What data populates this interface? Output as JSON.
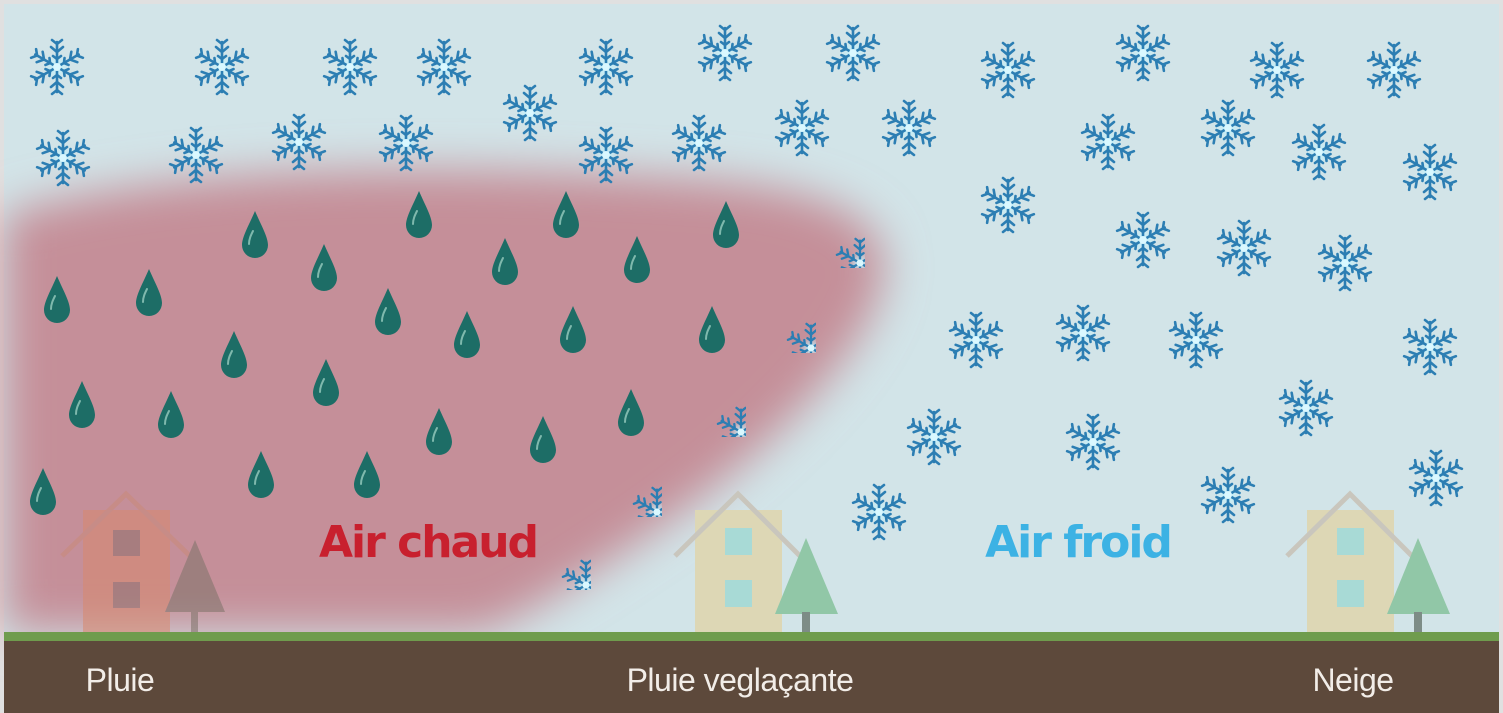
{
  "labels": {
    "warm_air": "Air chaud",
    "cold_air": "Air froid"
  },
  "ground_labels": [
    "Pluie",
    "Pluie veglaçante",
    "Neige"
  ]
}
